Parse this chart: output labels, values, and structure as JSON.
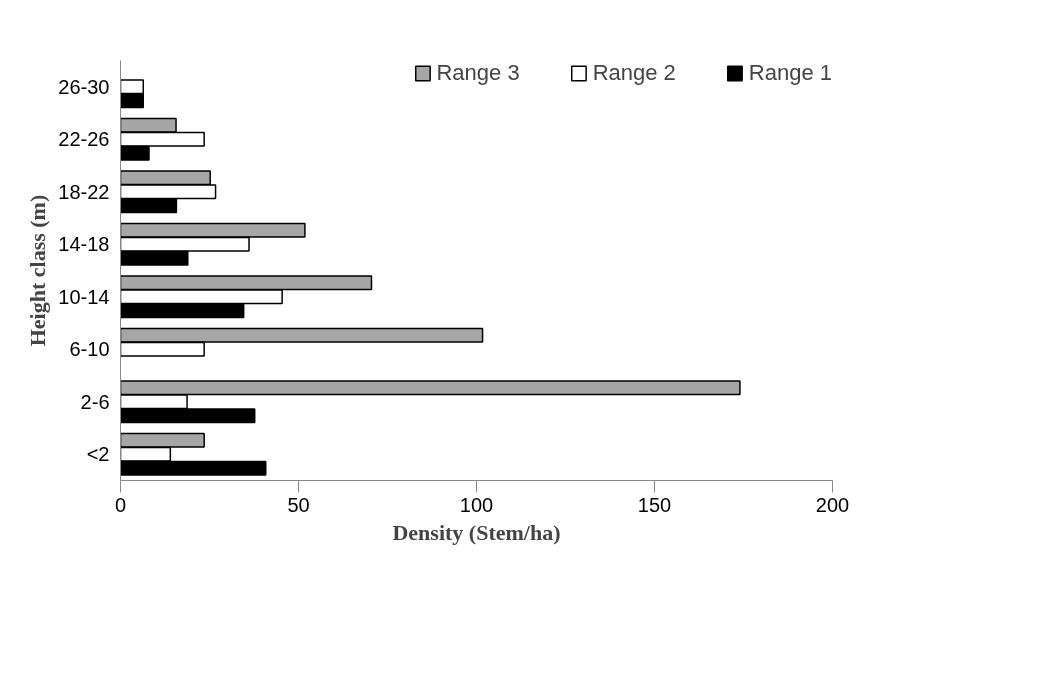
{
  "chart_data": {
    "type": "bar",
    "orientation": "horizontal",
    "xlabel": "Density (Stem/ha)",
    "ylabel": "Height class (m)",
    "categories": [
      "26-30",
      "22-26",
      "18-22",
      "14-18",
      "10-14",
      "6-10",
      "2-6",
      "<2"
    ],
    "series": [
      {
        "name": "Range 3",
        "color": "#a6a6a6",
        "values": [
          null,
          15.6,
          25.2,
          51.8,
          70.5,
          101.7,
          174.0,
          23.5
        ]
      },
      {
        "name": "Range 2",
        "color": "#ffffff",
        "values": [
          6.4,
          23.5,
          26.7,
          36.1,
          45.4,
          23.5,
          18.7,
          14.0
        ]
      },
      {
        "name": "Range 1",
        "color": "#000000",
        "values": [
          6.4,
          8.0,
          15.7,
          18.9,
          34.6,
          null,
          37.7,
          40.8
        ]
      }
    ],
    "xlim": [
      0,
      200
    ],
    "xticks": [
      0,
      50,
      100,
      150,
      200
    ],
    "grid": false,
    "legend": "top"
  }
}
